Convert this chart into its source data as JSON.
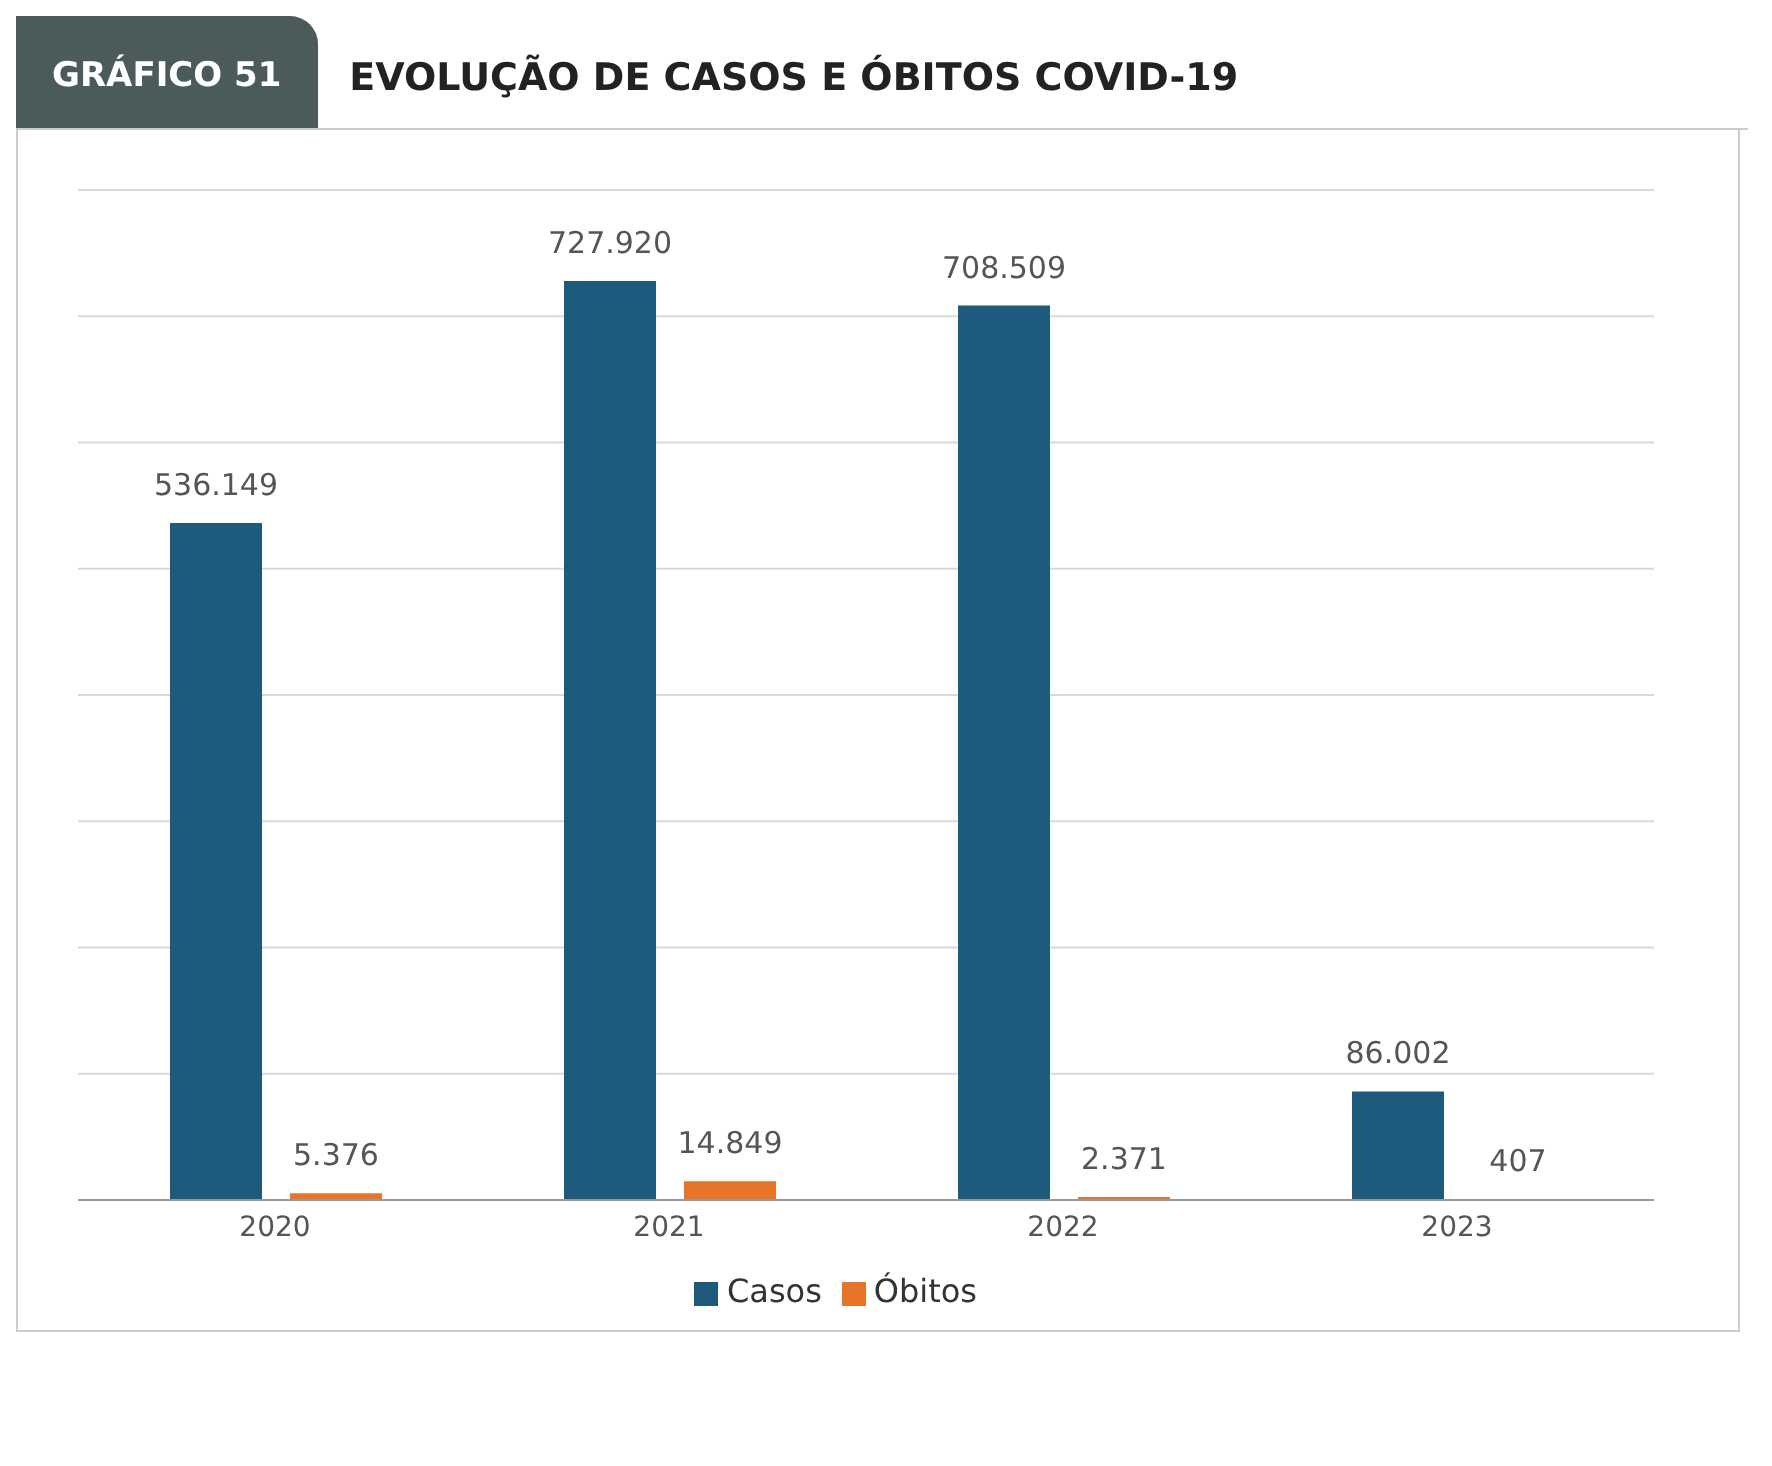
{
  "chart_data": {
    "type": "bar",
    "title": "EVOLUÇÃO DE CASOS E ÓBITOS COVID-19",
    "annotations": [
      "GRÁFICO 51"
    ],
    "categories": [
      "2020",
      "2021",
      "2022",
      "2023"
    ],
    "series": [
      {
        "name": "Casos",
        "color": "#1d5a7c",
        "values": [
          536149,
          727920,
          708509,
          86002
        ],
        "value_labels": [
          "536.149",
          "727.920",
          "708.509",
          "86.002"
        ]
      },
      {
        "name": "Óbitos",
        "color": "#e8742a",
        "values": [
          5376,
          14849,
          2371,
          407
        ],
        "value_labels": [
          "5.376",
          "14.849",
          "2.371",
          "407"
        ]
      }
    ],
    "ylim": [
      0,
      800000
    ],
    "yticks": [
      {
        "value": 0,
        "label": null
      },
      {
        "value": 100000,
        "label": null
      },
      {
        "value": 200000,
        "label": null
      },
      {
        "value": 300000,
        "label": null
      },
      {
        "value": 400000,
        "label": null
      },
      {
        "value": 500000,
        "label": null
      },
      {
        "value": 600000,
        "label": null
      },
      {
        "value": 700000,
        "label": null
      },
      {
        "value": 800000,
        "label": null
      }
    ],
    "tick_labels": "x",
    "grid": "y",
    "legend": "bottom"
  }
}
